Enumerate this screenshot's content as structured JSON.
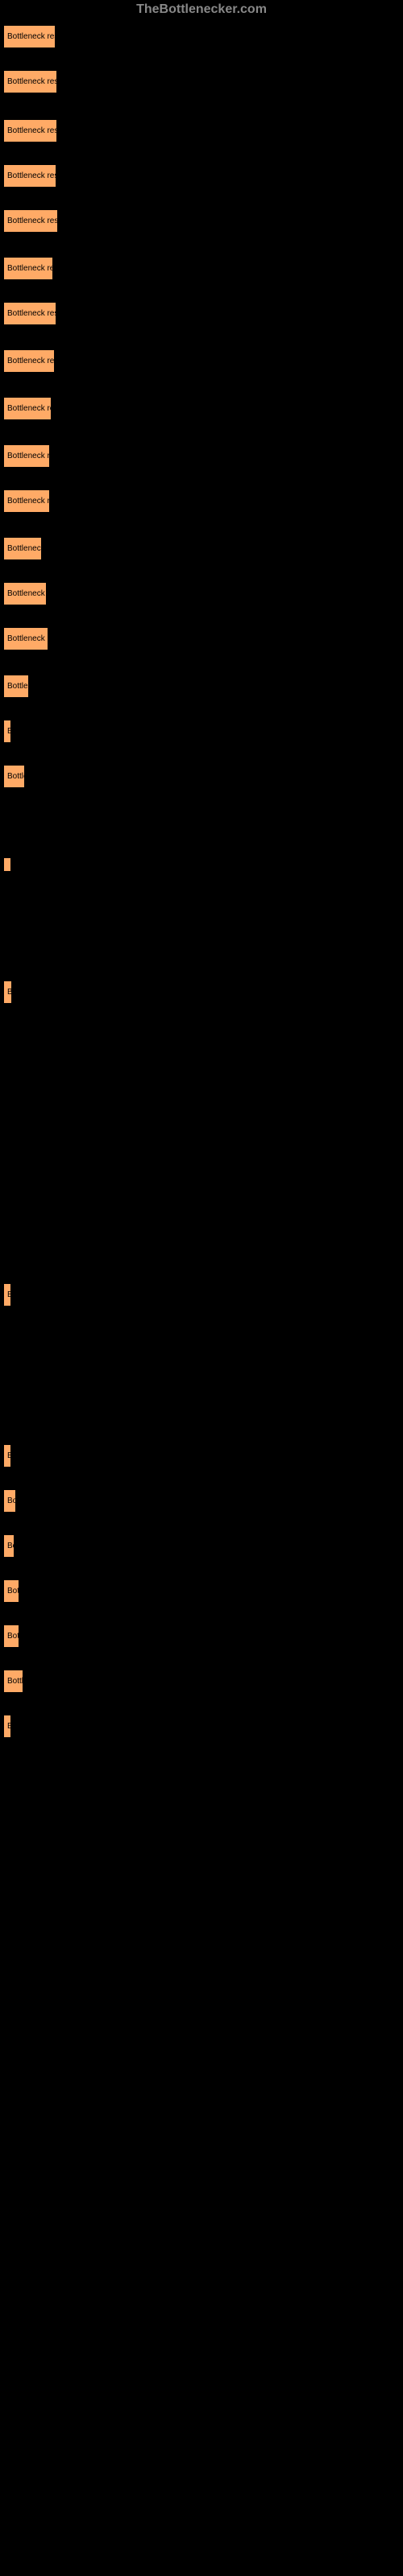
{
  "watermark": "TheBottlenecker.com",
  "items": [
    {
      "label": "Bottleneck resu",
      "width": 67
    },
    {
      "label": "Bottleneck resu",
      "width": 69
    },
    {
      "label": "Bottleneck resu",
      "width": 69
    },
    {
      "label": "Bottleneck resu",
      "width": 68
    },
    {
      "label": "Bottleneck resu",
      "width": 70
    },
    {
      "label": "Bottleneck res",
      "width": 64
    },
    {
      "label": "Bottleneck resu",
      "width": 68
    },
    {
      "label": "Bottleneck res",
      "width": 66
    },
    {
      "label": "Bottleneck re",
      "width": 62
    },
    {
      "label": "Bottleneck re",
      "width": 60
    },
    {
      "label": "Bottleneck re",
      "width": 60
    },
    {
      "label": "Bottleneck",
      "width": 50
    },
    {
      "label": "Bottleneck r",
      "width": 56
    },
    {
      "label": "Bottleneck r",
      "width": 58
    },
    {
      "label": "Bottlen",
      "width": 34
    },
    {
      "label": "B",
      "width": 9
    },
    {
      "label": "Bottle",
      "width": 29
    },
    {
      "label": "",
      "width": 0
    },
    {
      "label": "",
      "width": 8
    },
    {
      "label": "",
      "width": 0
    },
    {
      "label": "Bo",
      "width": 13
    },
    {
      "label": "",
      "width": 0
    },
    {
      "label": "",
      "width": 0
    },
    {
      "label": "",
      "width": 0
    },
    {
      "label": "",
      "width": 0
    },
    {
      "label": "B",
      "width": 10
    },
    {
      "label": "",
      "width": 0
    },
    {
      "label": "",
      "width": 0
    },
    {
      "label": "B",
      "width": 10
    },
    {
      "label": "Bor",
      "width": 18
    },
    {
      "label": "Bo",
      "width": 16
    },
    {
      "label": "Bott",
      "width": 22
    },
    {
      "label": "Bott",
      "width": 22
    },
    {
      "label": "Bottle",
      "width": 27
    },
    {
      "label": "B",
      "width": 11
    }
  ],
  "badge_bg": "#ffaa66",
  "badge_text_color": "#000000",
  "body_bg": "#000000"
}
